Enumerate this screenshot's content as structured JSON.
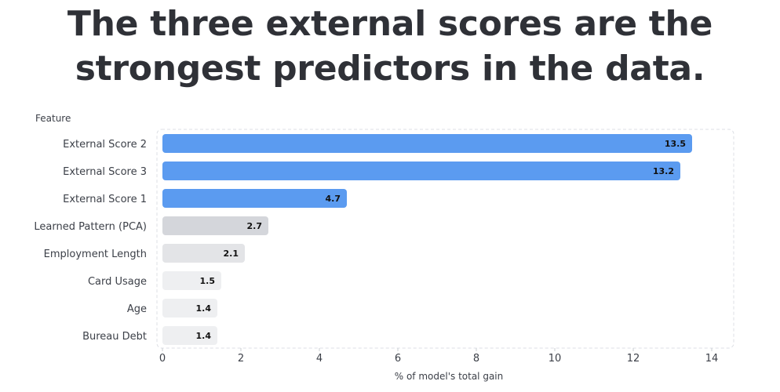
{
  "headline": "The three external scores are the strongest predictors in the data.",
  "chart_data": {
    "type": "bar",
    "orientation": "horizontal",
    "title": "",
    "ylabel": "Feature",
    "xlabel": "% of model's total gain",
    "xlim": [
      0,
      14.5
    ],
    "xticks": [
      0,
      2,
      4,
      6,
      8,
      10,
      12,
      14
    ],
    "grid": false,
    "legend": "none",
    "categories": [
      "External Score 2",
      "External Score 3",
      "External Score 1",
      "Learned Pattern (PCA)",
      "Employment Length",
      "Card Usage",
      "Age",
      "Bureau Debt"
    ],
    "values": [
      13.5,
      13.2,
      4.7,
      2.7,
      2.1,
      1.5,
      1.4,
      1.4
    ],
    "value_labels": [
      "13.5",
      "13.2",
      "4.7",
      "2.7",
      "2.1",
      "1.5",
      "1.4",
      "1.4"
    ],
    "colors": [
      "#5b9bf0",
      "#5b9bf0",
      "#5b9bf0",
      "#d4d6db",
      "#e3e4e7",
      "#eeeff1",
      "#eeeff1",
      "#eeeff1"
    ]
  }
}
